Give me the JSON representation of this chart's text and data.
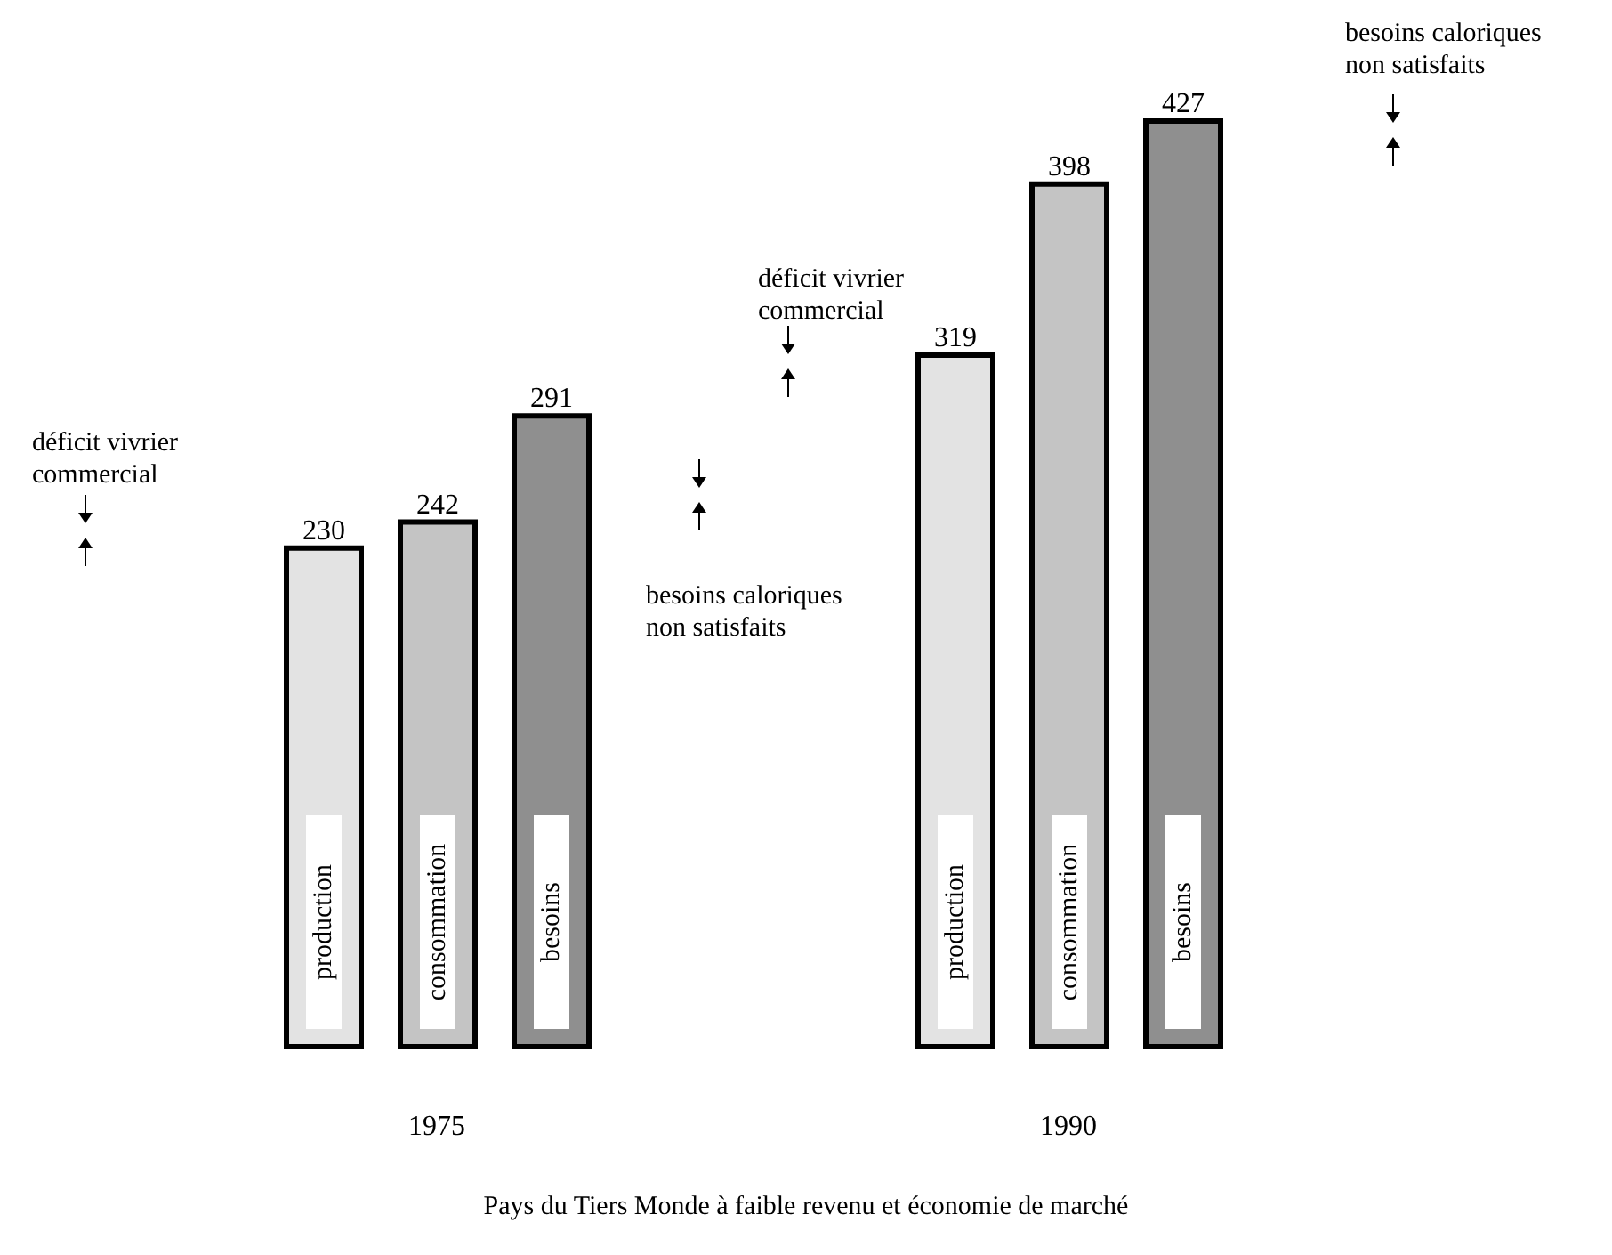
{
  "chart_data": {
    "type": "bar",
    "categories": [
      "1975",
      "1990"
    ],
    "series": [
      {
        "name": "production",
        "color": "#e3e3e3",
        "values": [
          230,
          319
        ]
      },
      {
        "name": "consommation",
        "color": "#c4c4c4",
        "values": [
          242,
          398
        ]
      },
      {
        "name": "besoins",
        "color": "#8f8f8f",
        "values": [
          291,
          427
        ]
      }
    ],
    "data_labels": true,
    "xlabel": "Pays du Tiers Monde à faible revenu et économie de marché",
    "annotations": [
      "déficit vivrier commercial",
      "besoins caloriques non satisfaits",
      "déficit vivrier commercial",
      "besoins caloriques non satisfaits"
    ]
  }
}
